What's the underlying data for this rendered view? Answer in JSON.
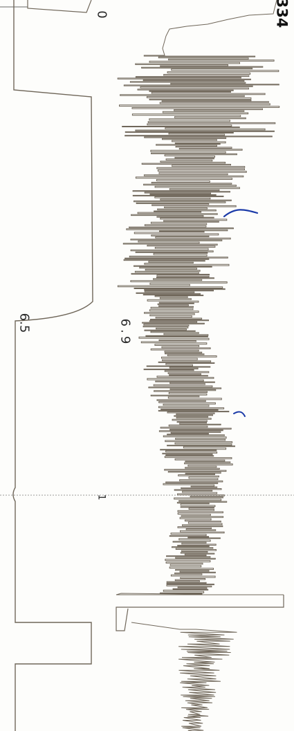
{
  "record": {
    "id_label": "334"
  },
  "labels": {
    "zero": "0",
    "value_left": "6.5",
    "value_mid": "6.9",
    "marker_one": "1"
  },
  "colors": {
    "trace": "#6f6659",
    "ink": "#2a2a2a",
    "pen_annotation": "#1b3aa8",
    "divider": "#9a9a9a"
  }
}
